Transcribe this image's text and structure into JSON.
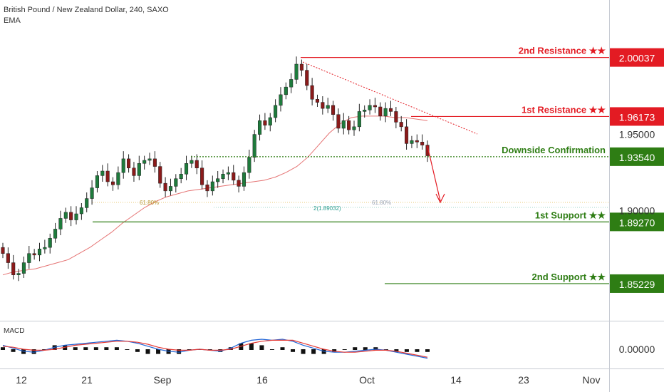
{
  "header": {
    "title": "British Pound / New Zealand Dollar, 240, SAXO",
    "indicator": "EMA"
  },
  "macd_label": "MACD",
  "colors": {
    "up": "#26a69a",
    "down": "#ef5350",
    "body_up": "#1e7b3c",
    "body_down": "#8b1a1a",
    "resistance": "#e31b23",
    "support": "#2e7d14",
    "ema": "#e57373",
    "macd": "#1e63d6",
    "signal": "#e53935"
  },
  "chart_data": {
    "type": "candlestick",
    "title": "British Pound / New Zealand Dollar, 240, SAXO",
    "ylim": [
      1.828,
      2.038
    ],
    "x_ticks": [
      "12",
      "21",
      "Sep",
      "16",
      "Oct",
      "14",
      "23",
      "Nov"
    ],
    "y_ticks": [
      1.95,
      1.9
    ],
    "y_tick_labels": [
      "1.95000",
      "1.90000"
    ],
    "macd_tick_label": "0.00000",
    "levels": [
      {
        "name": "2nd Resistance ★★",
        "value": 2.00037,
        "label": "2.00037",
        "kind": "resistance"
      },
      {
        "name": "1st Resistance ★★",
        "value": 1.96173,
        "label": "1.96173",
        "kind": "resistance"
      },
      {
        "name": "Downside Confirmation",
        "value": 1.9354,
        "label": "1.93540",
        "kind": "confirmation"
      },
      {
        "name": "1st Support ★★",
        "value": 1.8927,
        "label": "1.89270",
        "kind": "support"
      },
      {
        "name": "2nd Support ★★",
        "value": 1.85229,
        "label": "1.85229",
        "kind": "support"
      }
    ],
    "annotations": [
      "61.80%",
      "61.80%",
      "2(1.89032)"
    ],
    "close_path": [
      1.872,
      1.866,
      1.858,
      1.859,
      1.866,
      1.872,
      1.871,
      1.875,
      1.876,
      1.882,
      1.888,
      1.895,
      1.899,
      1.894,
      1.898,
      1.902,
      1.908,
      1.915,
      1.923,
      1.926,
      1.919,
      1.917,
      1.925,
      1.934,
      1.928,
      1.923,
      1.931,
      1.933,
      1.934,
      1.929,
      1.918,
      1.913,
      1.916,
      1.921,
      1.924,
      1.931,
      1.933,
      1.928,
      1.917,
      1.913,
      1.919,
      1.921,
      1.924,
      1.925,
      1.92,
      1.916,
      1.925,
      1.935,
      1.95,
      1.959,
      1.956,
      1.961,
      1.969,
      1.976,
      1.981,
      1.986,
      1.996,
      1.992,
      1.982,
      1.973,
      1.971,
      1.967,
      1.969,
      1.963,
      1.954,
      1.959,
      1.953,
      1.955,
      1.965,
      1.966,
      1.969,
      1.968,
      1.962,
      1.967,
      1.965,
      1.958,
      1.955,
      1.944,
      1.946,
      1.945,
      1.943,
      1.936
    ],
    "ema_path": [
      1.858,
      1.86,
      1.861,
      1.862,
      1.864,
      1.866,
      1.868,
      1.872,
      1.876,
      1.881,
      1.886,
      1.892,
      1.897,
      1.902,
      1.906,
      1.909,
      1.911,
      1.913,
      1.914,
      1.915,
      1.916,
      1.917,
      1.918,
      1.919,
      1.92,
      1.922,
      1.925,
      1.929,
      1.935,
      1.943,
      1.951,
      1.957,
      1.961,
      1.962,
      1.962,
      1.962,
      1.961,
      1.961,
      1.96,
      1.959
    ],
    "macd_series": [
      0.4,
      0.1,
      -0.2,
      -0.3,
      -0.1,
      0.2,
      0.4,
      0.5,
      0.6,
      0.7,
      0.8,
      0.9,
      0.8,
      0.6,
      0.3,
      0.0,
      -0.2,
      -0.3,
      -0.1,
      0.0,
      -0.1,
      -0.2,
      0.1,
      0.6,
      0.9,
      1.0,
      0.9,
      1.0,
      0.8,
      0.4,
      0.1,
      -0.2,
      -0.3,
      -0.3,
      -0.2,
      -0.1,
      0.0,
      -0.1,
      -0.3,
      -0.5,
      -0.7,
      -0.9
    ],
    "signal_series": [
      0.3,
      0.2,
      0.0,
      -0.1,
      -0.1,
      0.0,
      0.2,
      0.4,
      0.5,
      0.6,
      0.7,
      0.8,
      0.8,
      0.7,
      0.5,
      0.2,
      0.0,
      -0.1,
      -0.1,
      0.0,
      -0.1,
      -0.1,
      0.0,
      0.3,
      0.6,
      0.8,
      0.9,
      0.9,
      0.9,
      0.6,
      0.3,
      0.0,
      -0.2,
      -0.3,
      -0.3,
      -0.2,
      -0.1,
      -0.1,
      -0.2,
      -0.4,
      -0.6,
      -0.8
    ]
  }
}
